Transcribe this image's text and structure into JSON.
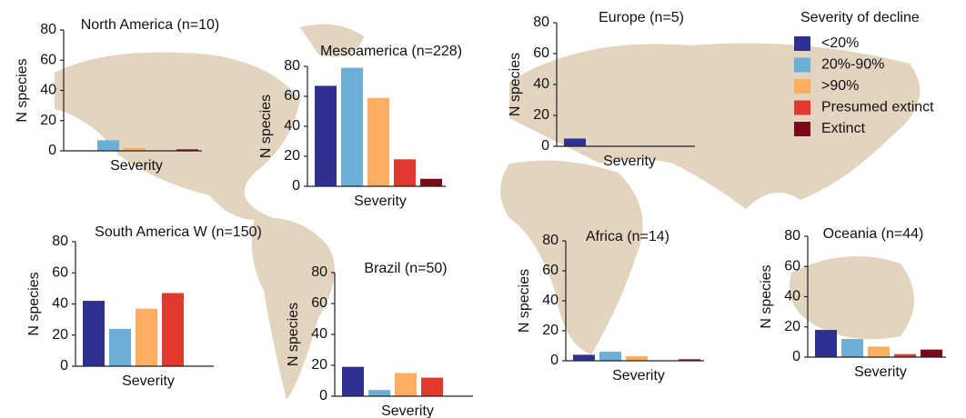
{
  "legend": {
    "title": "Severity of decline",
    "items": [
      {
        "name": "<20%",
        "color": "#2e3192"
      },
      {
        "name": "20%-90%",
        "color": "#6baed6"
      },
      {
        "name": ">90%",
        "color": "#fdae61"
      },
      {
        "name": "Presumed extinct",
        "color": "#e03a2e"
      },
      {
        "name": "Extinct",
        "color": "#7a0a1a"
      }
    ]
  },
  "chart_data": [
    {
      "type": "bar",
      "title": "North America (n=10)",
      "x_label": "Severity",
      "y_label": "N species",
      "values": [
        0,
        7,
        2,
        0,
        1
      ],
      "ylim": [
        0,
        80
      ],
      "yticks": [
        0,
        20,
        40,
        60,
        80
      ]
    },
    {
      "type": "bar",
      "title": "Mesoamerica (n=228)",
      "x_label": "Severity",
      "y_label": "N species",
      "values": [
        67,
        79,
        59,
        18,
        5
      ],
      "ylim": [
        0,
        80
      ],
      "yticks": [
        0,
        20,
        40,
        60,
        80
      ]
    },
    {
      "type": "bar",
      "title": "Europe (n=5)",
      "x_label": "Severity",
      "y_label": "N species",
      "values": [
        5,
        0,
        0,
        0,
        0
      ],
      "ylim": [
        0,
        80
      ],
      "yticks": [
        0,
        20,
        40,
        60,
        80
      ]
    },
    {
      "type": "bar",
      "title": "South America W (n=150)",
      "x_label": "Severity",
      "y_label": "N species",
      "values": [
        42,
        24,
        37,
        47,
        0
      ],
      "ylim": [
        0,
        80
      ],
      "yticks": [
        0,
        20,
        40,
        60,
        80
      ]
    },
    {
      "type": "bar",
      "title": "Brazil (n=50)",
      "x_label": "Severity",
      "y_label": "N species",
      "values": [
        19,
        4,
        15,
        12,
        0
      ],
      "ylim": [
        0,
        80
      ],
      "yticks": [
        0,
        20,
        40,
        60,
        80
      ]
    },
    {
      "type": "bar",
      "title": "Africa (n=14)",
      "x_label": "Severity",
      "y_label": "N species",
      "values": [
        4,
        6,
        3,
        0,
        1
      ],
      "ylim": [
        0,
        80
      ],
      "yticks": [
        0,
        20,
        40,
        60,
        80
      ]
    },
    {
      "type": "bar",
      "title": "Oceania (n=44)",
      "x_label": "Severity",
      "y_label": "N species",
      "values": [
        18,
        12,
        7,
        2,
        5
      ],
      "ylim": [
        0,
        80
      ],
      "yticks": [
        0,
        20,
        40,
        60,
        80
      ]
    }
  ]
}
